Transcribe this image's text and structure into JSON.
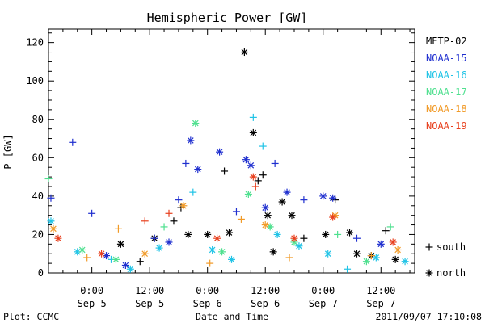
{
  "chart_data": {
    "type": "scatter",
    "title": "Hemispheric Power [GW]",
    "ylabel": "P [GW]",
    "xlabel": "Date and Time",
    "ylim": [
      0,
      127
    ],
    "xlim": [
      "2011-09-04 15:00",
      "2011-09-07 19:00"
    ],
    "grid": false,
    "legend": "right",
    "y_ticks": [
      "0",
      "20",
      "40",
      "60",
      "80",
      "100",
      "120"
    ],
    "x_ticks": [
      {
        "line1": "0:00",
        "line2": "Sep 5",
        "x": "2011-09-05 00:00"
      },
      {
        "line1": "12:00",
        "line2": "Sep 5",
        "x": "2011-09-05 12:00"
      },
      {
        "line1": "0:00",
        "line2": "Sep 6",
        "x": "2011-09-06 00:00"
      },
      {
        "line1": "12:00",
        "line2": "Sep 6",
        "x": "2011-09-06 12:00"
      },
      {
        "line1": "0:00",
        "line2": "Sep 7",
        "x": "2011-09-07 00:00"
      },
      {
        "line1": "12:00",
        "line2": "Sep 7",
        "x": "2011-09-07 12:00"
      }
    ],
    "markers": [
      {
        "symbol": "+",
        "label": "south"
      },
      {
        "symbol": "*",
        "label": "north"
      }
    ],
    "series": [
      {
        "name": "METP-02",
        "color": "#000000",
        "points": [
          {
            "x": "2011-09-05 06:00",
            "y": 15,
            "m": "*"
          },
          {
            "x": "2011-09-05 10:00",
            "y": 6,
            "m": "+"
          },
          {
            "x": "2011-09-05 13:00",
            "y": 18,
            "m": "*"
          },
          {
            "x": "2011-09-05 17:00",
            "y": 27,
            "m": "+"
          },
          {
            "x": "2011-09-05 18:30",
            "y": 34,
            "m": "+"
          },
          {
            "x": "2011-09-05 20:00",
            "y": 20,
            "m": "*"
          },
          {
            "x": "2011-09-06 00:00",
            "y": 20,
            "m": "*"
          },
          {
            "x": "2011-09-06 03:30",
            "y": 53,
            "m": "+"
          },
          {
            "x": "2011-09-06 04:30",
            "y": 21,
            "m": "*"
          },
          {
            "x": "2011-09-06 07:40",
            "y": 115,
            "m": "*"
          },
          {
            "x": "2011-09-06 09:30",
            "y": 73,
            "m": "*"
          },
          {
            "x": "2011-09-06 10:30",
            "y": 48,
            "m": "+"
          },
          {
            "x": "2011-09-06 11:30",
            "y": 51,
            "m": "+"
          },
          {
            "x": "2011-09-06 12:30",
            "y": 30,
            "m": "*"
          },
          {
            "x": "2011-09-06 13:40",
            "y": 11,
            "m": "*"
          },
          {
            "x": "2011-09-06 15:30",
            "y": 37,
            "m": "*"
          },
          {
            "x": "2011-09-06 17:30",
            "y": 30,
            "m": "*"
          },
          {
            "x": "2011-09-06 20:00",
            "y": 18,
            "m": "+"
          },
          {
            "x": "2011-09-07 00:30",
            "y": 20,
            "m": "*"
          },
          {
            "x": "2011-09-07 02:30",
            "y": 38,
            "m": "+"
          },
          {
            "x": "2011-09-07 05:30",
            "y": 21,
            "m": "*"
          },
          {
            "x": "2011-09-07 07:00",
            "y": 10,
            "m": "*"
          },
          {
            "x": "2011-09-07 10:00",
            "y": 9,
            "m": "*"
          },
          {
            "x": "2011-09-07 13:00",
            "y": 22,
            "m": "+"
          },
          {
            "x": "2011-09-07 15:00",
            "y": 7,
            "m": "*"
          }
        ]
      },
      {
        "name": "NOAA-15",
        "color": "#1f2fcf",
        "points": [
          {
            "x": "2011-09-04 15:30",
            "y": 39,
            "m": "+"
          },
          {
            "x": "2011-09-04 20:00",
            "y": 68,
            "m": "+"
          },
          {
            "x": "2011-09-05 00:00",
            "y": 31,
            "m": "+"
          },
          {
            "x": "2011-09-05 03:00",
            "y": 9,
            "m": "*"
          },
          {
            "x": "2011-09-05 07:00",
            "y": 4,
            "m": "*"
          },
          {
            "x": "2011-09-05 13:00",
            "y": 18,
            "m": "+"
          },
          {
            "x": "2011-09-05 16:00",
            "y": 16,
            "m": "*"
          },
          {
            "x": "2011-09-05 18:00",
            "y": 38,
            "m": "+"
          },
          {
            "x": "2011-09-05 19:30",
            "y": 57,
            "m": "+"
          },
          {
            "x": "2011-09-05 20:30",
            "y": 69,
            "m": "*"
          },
          {
            "x": "2011-09-05 22:00",
            "y": 54,
            "m": "*"
          },
          {
            "x": "2011-09-06 02:30",
            "y": 63,
            "m": "*"
          },
          {
            "x": "2011-09-06 06:00",
            "y": 32,
            "m": "+"
          },
          {
            "x": "2011-09-06 08:00",
            "y": 59,
            "m": "*"
          },
          {
            "x": "2011-09-06 09:00",
            "y": 56,
            "m": "*"
          },
          {
            "x": "2011-09-06 12:00",
            "y": 34,
            "m": "*"
          },
          {
            "x": "2011-09-06 14:00",
            "y": 57,
            "m": "+"
          },
          {
            "x": "2011-09-06 16:30",
            "y": 42,
            "m": "*"
          },
          {
            "x": "2011-09-06 20:00",
            "y": 38,
            "m": "+"
          },
          {
            "x": "2011-09-07 00:00",
            "y": 40,
            "m": "*"
          },
          {
            "x": "2011-09-07 02:00",
            "y": 39,
            "m": "*"
          },
          {
            "x": "2011-09-07 07:00",
            "y": 18,
            "m": "+"
          },
          {
            "x": "2011-09-07 12:00",
            "y": 15,
            "m": "*"
          }
        ]
      },
      {
        "name": "NOAA-16",
        "color": "#1fc3e6",
        "points": [
          {
            "x": "2011-09-04 15:30",
            "y": 27,
            "m": "*"
          },
          {
            "x": "2011-09-04 21:00",
            "y": 11,
            "m": "*"
          },
          {
            "x": "2011-09-05 04:00",
            "y": 7,
            "m": "+"
          },
          {
            "x": "2011-09-05 08:00",
            "y": 2,
            "m": "*"
          },
          {
            "x": "2011-09-05 14:00",
            "y": 13,
            "m": "*"
          },
          {
            "x": "2011-09-05 21:00",
            "y": 42,
            "m": "+"
          },
          {
            "x": "2011-09-06 01:00",
            "y": 12,
            "m": "*"
          },
          {
            "x": "2011-09-06 05:00",
            "y": 7,
            "m": "*"
          },
          {
            "x": "2011-09-06 09:30",
            "y": 81,
            "m": "+"
          },
          {
            "x": "2011-09-06 11:30",
            "y": 66,
            "m": "+"
          },
          {
            "x": "2011-09-06 14:30",
            "y": 20,
            "m": "*"
          },
          {
            "x": "2011-09-06 19:00",
            "y": 14,
            "m": "*"
          },
          {
            "x": "2011-09-07 01:00",
            "y": 10,
            "m": "*"
          },
          {
            "x": "2011-09-07 05:00",
            "y": 2,
            "m": "+"
          },
          {
            "x": "2011-09-07 11:00",
            "y": 8,
            "m": "*"
          },
          {
            "x": "2011-09-07 17:00",
            "y": 6,
            "m": "*"
          }
        ]
      },
      {
        "name": "NOAA-17",
        "color": "#4fe08f",
        "points": [
          {
            "x": "2011-09-04 15:00",
            "y": 49,
            "m": "+"
          },
          {
            "x": "2011-09-04 22:00",
            "y": 12,
            "m": "*"
          },
          {
            "x": "2011-09-05 05:00",
            "y": 7,
            "m": "*"
          },
          {
            "x": "2011-09-05 15:00",
            "y": 24,
            "m": "+"
          },
          {
            "x": "2011-09-05 21:30",
            "y": 78,
            "m": "*"
          },
          {
            "x": "2011-09-06 03:00",
            "y": 11,
            "m": "*"
          },
          {
            "x": "2011-09-06 08:30",
            "y": 41,
            "m": "*"
          },
          {
            "x": "2011-09-06 13:00",
            "y": 24,
            "m": "*"
          },
          {
            "x": "2011-09-06 18:00",
            "y": 16,
            "m": "*"
          },
          {
            "x": "2011-09-07 03:00",
            "y": 20,
            "m": "+"
          },
          {
            "x": "2011-09-07 09:00",
            "y": 6,
            "m": "*"
          },
          {
            "x": "2011-09-07 14:00",
            "y": 24,
            "m": "+"
          }
        ]
      },
      {
        "name": "NOAA-18",
        "color": "#f19a27",
        "points": [
          {
            "x": "2011-09-04 16:00",
            "y": 23,
            "m": "*"
          },
          {
            "x": "2011-09-04 23:00",
            "y": 8,
            "m": "+"
          },
          {
            "x": "2011-09-05 05:30",
            "y": 23,
            "m": "+"
          },
          {
            "x": "2011-09-05 11:00",
            "y": 10,
            "m": "*"
          },
          {
            "x": "2011-09-05 19:00",
            "y": 35,
            "m": "*"
          },
          {
            "x": "2011-09-06 00:30",
            "y": 5,
            "m": "+"
          },
          {
            "x": "2011-09-06 07:00",
            "y": 28,
            "m": "+"
          },
          {
            "x": "2011-09-06 12:00",
            "y": 25,
            "m": "*"
          },
          {
            "x": "2011-09-06 17:00",
            "y": 8,
            "m": "+"
          },
          {
            "x": "2011-09-07 02:30",
            "y": 30,
            "m": "*"
          },
          {
            "x": "2011-09-07 10:00",
            "y": 9,
            "m": "+"
          },
          {
            "x": "2011-09-07 15:30",
            "y": 12,
            "m": "*"
          }
        ]
      },
      {
        "name": "NOAA-19",
        "color": "#e8401e",
        "points": [
          {
            "x": "2011-09-04 17:00",
            "y": 18,
            "m": "*"
          },
          {
            "x": "2011-09-05 02:00",
            "y": 10,
            "m": "*"
          },
          {
            "x": "2011-09-05 11:00",
            "y": 27,
            "m": "+"
          },
          {
            "x": "2011-09-05 16:00",
            "y": 31,
            "m": "+"
          },
          {
            "x": "2011-09-06 02:00",
            "y": 18,
            "m": "*"
          },
          {
            "x": "2011-09-06 09:30",
            "y": 50,
            "m": "*"
          },
          {
            "x": "2011-09-06 10:00",
            "y": 45,
            "m": "+"
          },
          {
            "x": "2011-09-06 18:00",
            "y": 18,
            "m": "*"
          },
          {
            "x": "2011-09-07 02:00",
            "y": 29,
            "m": "*"
          },
          {
            "x": "2011-09-07 14:30",
            "y": 16,
            "m": "*"
          }
        ]
      }
    ]
  },
  "footer": {
    "left": "Plot: CCMC",
    "center": "Date and Time",
    "right": "2011/09/07 17:10:08"
  }
}
